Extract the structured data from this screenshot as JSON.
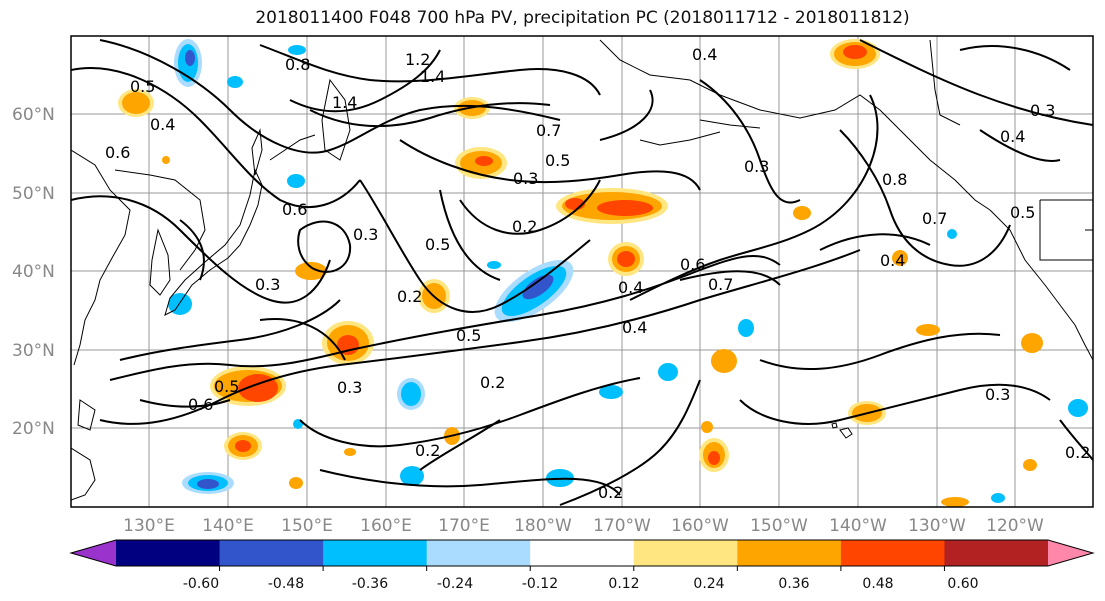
{
  "title": "2018011400 F048 700 hPa PV, precipitation PC (2018011712 - 2018011812)",
  "lat_labels": [
    "60°N",
    "50°N",
    "40°N",
    "30°N",
    "20°N"
  ],
  "lon_labels": [
    "130°E",
    "140°E",
    "150°E",
    "160°E",
    "170°E",
    "180°W",
    "170°W",
    "160°W",
    "150°W",
    "140°W",
    "130°W",
    "120°W"
  ],
  "colorbar": {
    "colors": [
      "#9933cc",
      "#000080",
      "#3355cc",
      "#00bfff",
      "#aadcff",
      "#ffffff",
      "#ffe680",
      "#ffa500",
      "#ff4500",
      "#b22222",
      "#ff88aa"
    ],
    "tick_labels": [
      "-0.60",
      "-0.48",
      "-0.36",
      "-0.24",
      "-0.12",
      "0.12",
      "0.24",
      "0.36",
      "0.48",
      "0.60"
    ]
  },
  "contour_labels": [
    "0.5",
    "0.4",
    "0.6",
    "0.6",
    "0.8",
    "1.2",
    "1.4",
    "1.4",
    "0.7",
    "0.5",
    "0.3",
    "0.2",
    "0.5",
    "0.3",
    "0.3",
    "0.2",
    "0.4",
    "0.6",
    "0.7",
    "0.4",
    "0.5",
    "0.5",
    "0.3",
    "0.2",
    "0.2",
    "0.2",
    "0.3",
    "0.2",
    "0.4",
    "0.8",
    "0.7",
    "0.4",
    "0.3",
    "0.4",
    "0.5",
    "0.3",
    "0.6"
  ]
}
